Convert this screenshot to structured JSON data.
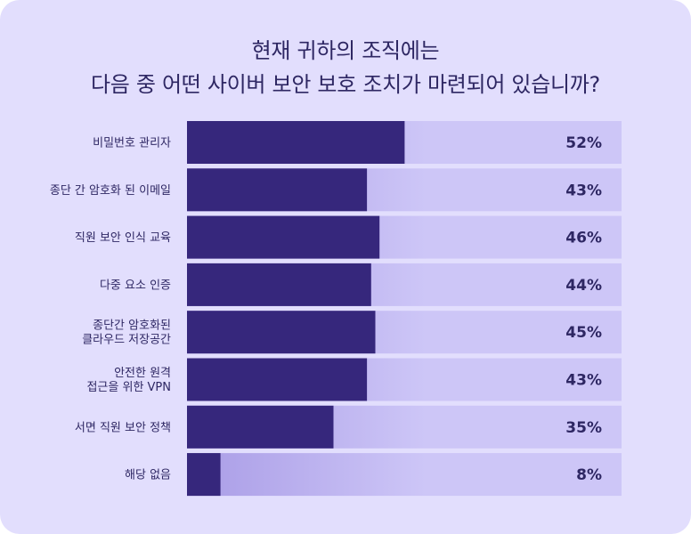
{
  "chart_data": {
    "type": "bar",
    "orientation": "horizontal",
    "title_lines": [
      "현재 귀하의 조직에는",
      "다음 중 어떤 사이버 보안 보호 조치가 마련되어 있습니까?"
    ],
    "categories": [
      [
        "비밀번호 관리자"
      ],
      [
        "종단 간 암호화 된 이메일"
      ],
      [
        "직원 보안 인식 교육"
      ],
      [
        "다중 요소 인증"
      ],
      [
        "종단간 암호화된",
        "클라우드 저장공간"
      ],
      [
        "안전한 원격",
        "접근을 위한 VPN"
      ],
      [
        "서면 직원 보안 정책"
      ],
      [
        "해당 없음"
      ]
    ],
    "values": [
      52,
      43,
      46,
      44,
      45,
      43,
      35,
      8
    ],
    "value_labels": [
      "52%",
      "43%",
      "46%",
      "44%",
      "45%",
      "43%",
      "35%",
      "8%"
    ],
    "xlim": [
      0,
      100
    ],
    "colors": {
      "background": "#e2defd",
      "bar": "#36277c",
      "track_light": "#cdc6f7",
      "track_dark": "#a99ce6",
      "text": "#2e2763"
    }
  }
}
